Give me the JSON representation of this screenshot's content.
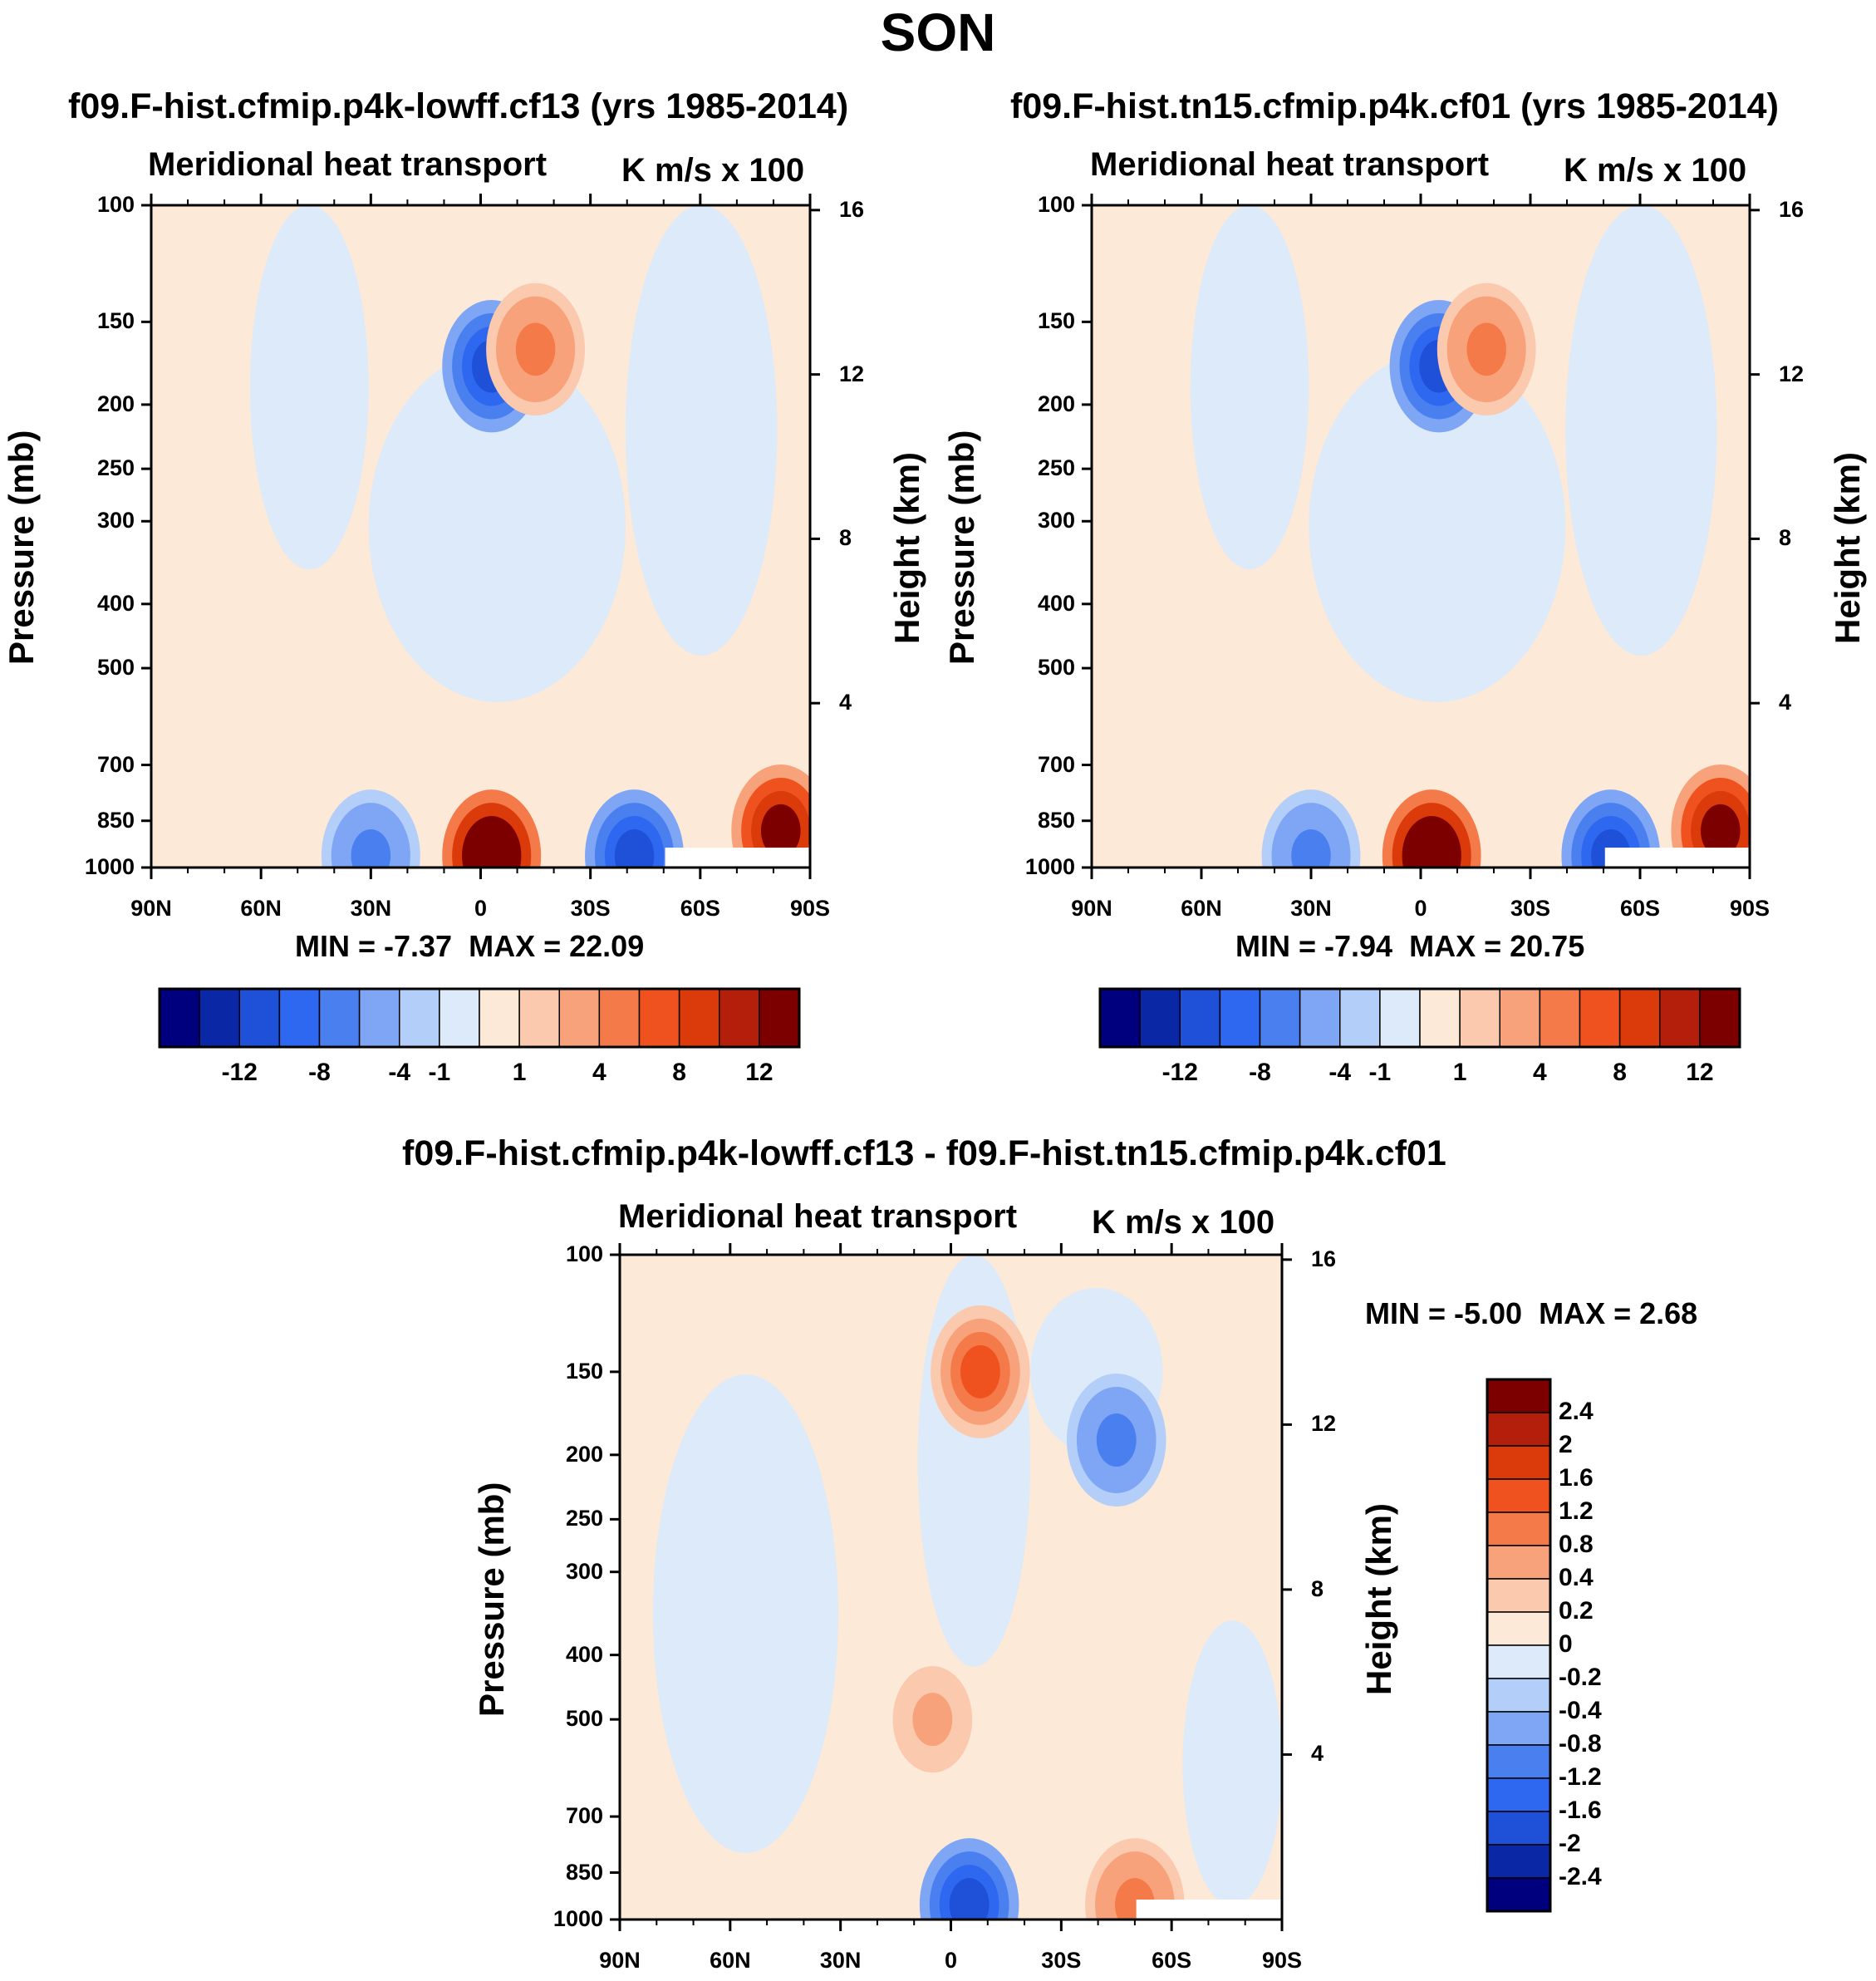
{
  "supertitle": "SON",
  "colors": {
    "neg": [
      "#00007f",
      "#0a28a5",
      "#1e50d8",
      "#2e68f0",
      "#4a7fef",
      "#7ea6f5",
      "#b3cef8",
      "#dceaf9"
    ],
    "pos": [
      "#fde9d8",
      "#fbc9ad",
      "#f8a27b",
      "#f57a4a",
      "#f0521f",
      "#db3a0a",
      "#b31f0b",
      "#7d0000"
    ],
    "blank": "#ffffff"
  },
  "panels": [
    {
      "title": "f09.F-hist.cfmip.p4k-lowff.cf13 (yrs 1985-2014)",
      "left_subtitle": "Meridional heat transport",
      "right_subtitle": "K m/s x 100",
      "ylabel": "Pressure (mb)",
      "ylabel_right": "Height (km)",
      "min_label": "MIN = ",
      "min_value": "-7.37",
      "max_label": "MAX = ",
      "max_value": "22.09"
    },
    {
      "title": "f09.F-hist.tn15.cfmip.p4k.cf01 (yrs 1985-2014)",
      "left_subtitle": "Meridional heat transport",
      "right_subtitle": "K m/s x 100",
      "ylabel": "Pressure (mb)",
      "ylabel_right": "Height (km)",
      "min_label": "MIN = ",
      "min_value": "-7.94",
      "max_label": "MAX = ",
      "max_value": "20.75"
    },
    {
      "title": "f09.F-hist.cfmip.p4k-lowff.cf13 - f09.F-hist.tn15.cfmip.p4k.cf01",
      "left_subtitle": "Meridional heat transport",
      "right_subtitle": "K m/s x 100",
      "ylabel": "Pressure (mb)",
      "ylabel_right": "Height (km)",
      "min_label": "MIN = ",
      "min_value": "-5.00",
      "max_label": "MAX = ",
      "max_value": "2.68"
    }
  ],
  "chart_data": [
    {
      "type": "heatmap",
      "title": "f09.F-hist.cfmip.p4k-lowff.cf13 (yrs 1985-2014)",
      "subtitle_left": "Meridional heat transport",
      "units": "K m/s x 100",
      "xlabel": "",
      "ylabel": "Pressure (mb)",
      "ylabel_right": "Height (km)",
      "x_ticks": [
        "90N",
        "60N",
        "30N",
        "0",
        "30S",
        "60S",
        "90S"
      ],
      "x_range": [
        90,
        -90
      ],
      "y_ticks": [
        100,
        150,
        200,
        250,
        300,
        400,
        500,
        700,
        850,
        1000
      ],
      "y_scale": "log",
      "y_range": [
        1000,
        100
      ],
      "height_ticks_km": [
        16,
        12,
        8,
        4
      ],
      "min": -7.37,
      "max": 22.09,
      "colorbar_labels": [
        "-12",
        "-8",
        "-4",
        "-1",
        "1",
        "4",
        "8",
        "12"
      ],
      "features": [
        {
          "sign": "neg",
          "level": -8,
          "lat": -3,
          "p": 175
        },
        {
          "sign": "pos",
          "level": 4,
          "lat": -15,
          "p": 165
        },
        {
          "sign": "pos",
          "level": 16,
          "lat": -3,
          "p": 960
        },
        {
          "sign": "neg",
          "level": -8,
          "lat": -42,
          "p": 960
        },
        {
          "sign": "neg",
          "level": -4,
          "lat": 30,
          "p": 960
        },
        {
          "sign": "pos",
          "level": 12,
          "lat": -82,
          "p": 880
        }
      ]
    },
    {
      "type": "heatmap",
      "title": "f09.F-hist.tn15.cfmip.p4k.cf01 (yrs 1985-2014)",
      "subtitle_left": "Meridional heat transport",
      "units": "K m/s x 100",
      "xlabel": "",
      "ylabel": "Pressure (mb)",
      "ylabel_right": "Height (km)",
      "x_ticks": [
        "90N",
        "60N",
        "30N",
        "0",
        "30S",
        "60S",
        "90S"
      ],
      "x_range": [
        90,
        -90
      ],
      "y_ticks": [
        100,
        150,
        200,
        250,
        300,
        400,
        500,
        700,
        850,
        1000
      ],
      "y_scale": "log",
      "y_range": [
        1000,
        100
      ],
      "height_ticks_km": [
        16,
        12,
        8,
        4
      ],
      "min": -7.94,
      "max": 20.75,
      "colorbar_labels": [
        "-12",
        "-8",
        "-4",
        "-1",
        "1",
        "4",
        "8",
        "12"
      ],
      "features": [
        {
          "sign": "neg",
          "level": -8,
          "lat": -5,
          "p": 175
        },
        {
          "sign": "pos",
          "level": 4,
          "lat": -18,
          "p": 165
        },
        {
          "sign": "pos",
          "level": 16,
          "lat": -3,
          "p": 960
        },
        {
          "sign": "neg",
          "level": -8,
          "lat": -52,
          "p": 960
        },
        {
          "sign": "neg",
          "level": -4,
          "lat": 30,
          "p": 960
        },
        {
          "sign": "pos",
          "level": 12,
          "lat": -82,
          "p": 880
        }
      ]
    },
    {
      "type": "heatmap",
      "title": "f09.F-hist.cfmip.p4k-lowff.cf13 - f09.F-hist.tn15.cfmip.p4k.cf01",
      "subtitle_left": "Meridional heat transport",
      "units": "K m/s x 100",
      "xlabel": "",
      "ylabel": "Pressure (mb)",
      "ylabel_right": "Height (km)",
      "x_ticks": [
        "90N",
        "60N",
        "30N",
        "0",
        "30S",
        "60S",
        "90S"
      ],
      "x_range": [
        90,
        -90
      ],
      "y_ticks": [
        100,
        150,
        200,
        250,
        300,
        400,
        500,
        700,
        850,
        1000
      ],
      "y_scale": "log",
      "y_range": [
        1000,
        100
      ],
      "height_ticks_km": [
        16,
        12,
        8,
        4
      ],
      "min": -5.0,
      "max": 2.68,
      "colorbar_labels": [
        "2.4",
        "2",
        "1.6",
        "1.2",
        "0.8",
        "0.4",
        "0.2",
        "0",
        "-0.2",
        "-0.4",
        "-0.8",
        "-1.2",
        "-1.6",
        "-2",
        "-2.4"
      ],
      "features": [
        {
          "sign": "pos",
          "level": 1.2,
          "lat": -8,
          "p": 150
        },
        {
          "sign": "neg",
          "level": -1.6,
          "lat": -5,
          "p": 950
        },
        {
          "sign": "pos",
          "level": 0.8,
          "lat": -50,
          "p": 950
        },
        {
          "sign": "pos",
          "level": 0.4,
          "lat": 5,
          "p": 500
        },
        {
          "sign": "neg",
          "level": -0.8,
          "lat": -45,
          "p": 190
        }
      ]
    }
  ]
}
